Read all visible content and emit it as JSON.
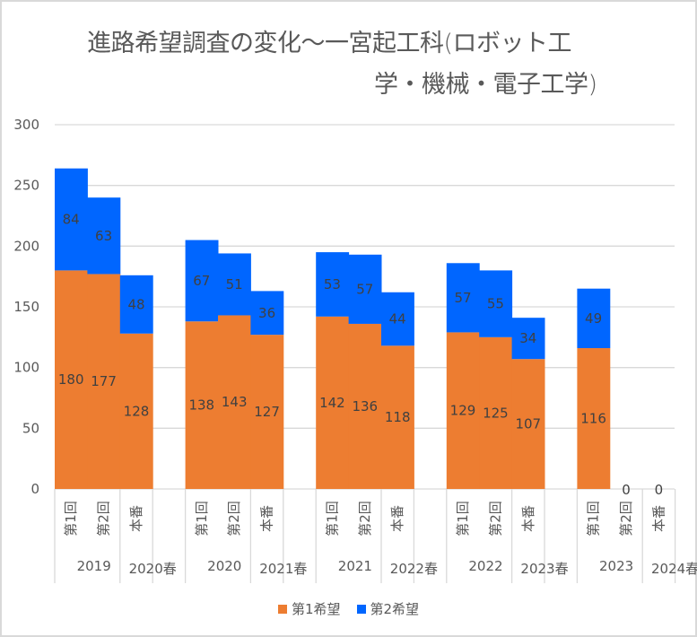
{
  "chart_data": {
    "type": "bar",
    "stacked": true,
    "title_lines": [
      "進路希望調査の変化～一宮起工科(ロボット工",
      "学・機械・電子工学)"
    ],
    "groups": [
      {
        "year": "2019",
        "spring": "2020春"
      },
      {
        "year": "2020",
        "spring": "2021春"
      },
      {
        "year": "2021",
        "spring": "2022春"
      },
      {
        "year": "2022",
        "spring": "2023春"
      },
      {
        "year": "2023",
        "spring": "2024春"
      }
    ],
    "categories": [
      "第1回",
      "第2回",
      "本番"
    ],
    "series": [
      {
        "name": "第1希望",
        "color": "#ED7D31",
        "values": [
          [
            180,
            177,
            128
          ],
          [
            138,
            143,
            127
          ],
          [
            142,
            136,
            118
          ],
          [
            129,
            125,
            107
          ],
          [
            116,
            null,
            null
          ]
        ]
      },
      {
        "name": "第2希望",
        "color": "#0066FF",
        "values": [
          [
            84,
            63,
            48
          ],
          [
            67,
            51,
            36
          ],
          [
            53,
            57,
            44
          ],
          [
            57,
            55,
            34
          ],
          [
            49,
            0,
            0
          ]
        ]
      }
    ],
    "ylim": [
      0,
      300
    ],
    "yticks": [
      0,
      50,
      100,
      150,
      200,
      250,
      300
    ],
    "grid": true,
    "legend": "bottom",
    "xlabel": "",
    "ylabel": ""
  }
}
